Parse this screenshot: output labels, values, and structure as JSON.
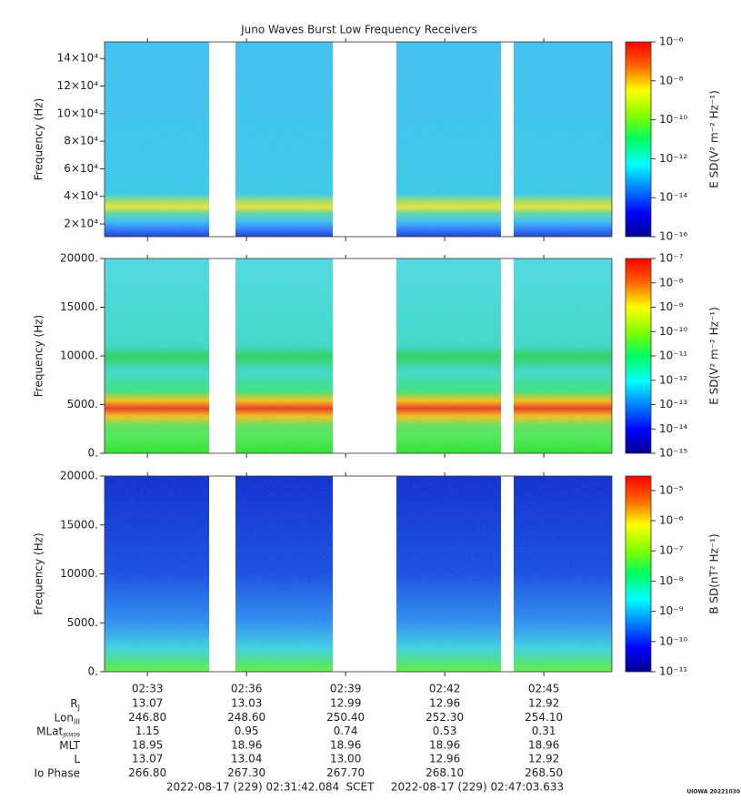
{
  "title": "Juno Waves Burst Low Frequency Receivers",
  "xaxis": {
    "xlim": [
      31.7014,
      47.0606
    ],
    "xticks": [
      {
        "value": 33,
        "label": "02:33"
      },
      {
        "value": 36,
        "label": "02:36"
      },
      {
        "value": 39,
        "label": "02:39"
      },
      {
        "value": 42,
        "label": "02:42"
      },
      {
        "value": 45,
        "label": "02:45"
      }
    ],
    "segments": [
      [
        31.7014,
        34.867
      ],
      [
        35.665,
        38.61
      ],
      [
        40.537,
        43.702
      ],
      [
        44.088,
        47.0606
      ]
    ]
  },
  "chart_data": [
    {
      "type": "spectrogram",
      "ylabel": "Frequency (Hz)",
      "ylim": [
        10800,
        152000
      ],
      "yticks": [
        {
          "value": 20000,
          "label": "2×10⁴"
        },
        {
          "value": 40000,
          "label": "4×10⁴"
        },
        {
          "value": 60000,
          "label": "6×10⁴"
        },
        {
          "value": 80000,
          "label": "8×10⁴"
        },
        {
          "value": 100000,
          "label": "10×10⁴"
        },
        {
          "value": 120000,
          "label": "12×10⁴"
        },
        {
          "value": 140000,
          "label": "14×10⁴"
        }
      ],
      "colorbar": {
        "label": "E SD(V² m⁻² Hz⁻¹)",
        "log": true,
        "lim": [
          1e-16,
          1e-06
        ],
        "ticks": [
          {
            "value": 1e-16,
            "label": "10⁻¹⁶"
          },
          {
            "value": 1e-14,
            "label": "10⁻¹⁴"
          },
          {
            "value": 1e-12,
            "label": "10⁻¹²"
          },
          {
            "value": 1e-10,
            "label": "10⁻¹⁰"
          },
          {
            "value": 1e-08,
            "label": "10⁻⁸"
          },
          {
            "value": 1e-06,
            "label": "10⁻⁶"
          }
        ]
      }
    },
    {
      "type": "spectrogram",
      "ylabel": "Frequency (Hz)",
      "ylim": [
        0,
        20000
      ],
      "yticks": [
        {
          "value": 0,
          "label": "0."
        },
        {
          "value": 5000,
          "label": "5000."
        },
        {
          "value": 10000,
          "label": "10000."
        },
        {
          "value": 15000,
          "label": "15000."
        },
        {
          "value": 20000,
          "label": "20000."
        }
      ],
      "colorbar": {
        "label": "E SD(V² m⁻² Hz⁻¹)",
        "log": true,
        "lim": [
          1e-15,
          1e-07
        ],
        "ticks": [
          {
            "value": 1e-15,
            "label": "10⁻¹⁵"
          },
          {
            "value": 1e-14,
            "label": "10⁻¹⁴"
          },
          {
            "value": 1e-13,
            "label": "10⁻¹³"
          },
          {
            "value": 1e-12,
            "label": "10⁻¹²"
          },
          {
            "value": 1e-11,
            "label": "10⁻¹¹"
          },
          {
            "value": 1e-10,
            "label": "10⁻¹⁰"
          },
          {
            "value": 1e-09,
            "label": "10⁻⁹"
          },
          {
            "value": 1e-08,
            "label": "10⁻⁸"
          },
          {
            "value": 1e-07,
            "label": "10⁻⁷"
          }
        ]
      }
    },
    {
      "type": "spectrogram",
      "ylabel": "Frequency (Hz)",
      "ylim": [
        0,
        20000
      ],
      "yticks": [
        {
          "value": 0,
          "label": "0."
        },
        {
          "value": 5000,
          "label": "5000."
        },
        {
          "value": 10000,
          "label": "10000."
        },
        {
          "value": 15000,
          "label": "15000."
        },
        {
          "value": 20000,
          "label": "20000."
        }
      ],
      "colorbar": {
        "label": "B SD(nT² Hz⁻¹)",
        "log": true,
        "lim": [
          1e-11,
          3e-05
        ],
        "ticks": [
          {
            "value": 1e-11,
            "label": "10⁻¹¹"
          },
          {
            "value": 1e-10,
            "label": "10⁻¹⁰"
          },
          {
            "value": 1e-09,
            "label": "10⁻⁹"
          },
          {
            "value": 1e-08,
            "label": "10⁻⁸"
          },
          {
            "value": 1e-07,
            "label": "10⁻⁷"
          },
          {
            "value": 1e-06,
            "label": "10⁻⁶"
          },
          {
            "value": 1e-05,
            "label": "10⁻⁵"
          }
        ]
      }
    }
  ],
  "ephemeris": {
    "rows": [
      {
        "label": "R",
        "sub": "J",
        "values": [
          "13.07",
          "13.03",
          "12.99",
          "12.96",
          "12.92"
        ]
      },
      {
        "label": "Lon",
        "sub": "III",
        "values": [
          "246.80",
          "248.60",
          "250.40",
          "252.30",
          "254.10"
        ]
      },
      {
        "label": "MLat",
        "sub": "JRM09",
        "values": [
          "1.15",
          "0.95",
          "0.74",
          "0.53",
          "0.31"
        ]
      },
      {
        "label": "MLT",
        "values": [
          "18.95",
          "18.96",
          "18.96",
          "18.96",
          "18.96"
        ]
      },
      {
        "label": "L",
        "values": [
          "13.07",
          "13.04",
          "13.00",
          "12.96",
          "12.92"
        ]
      },
      {
        "label": "Io Phase",
        "values": [
          "266.80",
          "267.30",
          "267.70",
          "268.10",
          "268.50"
        ]
      }
    ]
  },
  "footer": {
    "start": "2022-08-17 (229) 02:31:42.084",
    "frame": "SCET",
    "end": "2022-08-17 (229) 02:47:03.633",
    "stamp": "UIOWA 20221030"
  }
}
